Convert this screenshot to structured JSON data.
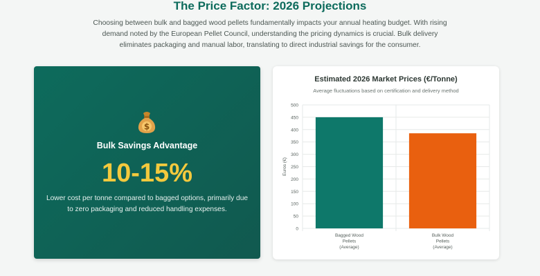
{
  "header": {
    "title": "The Price Factor: 2026 Projections",
    "intro": "Choosing between bulk and bagged wood pellets fundamentally impacts your annual heating budget. With rising demand noted by the European Pellet Council, understanding the pricing dynamics is crucial. Bulk delivery eliminates packaging and manual labor, translating to direct industrial savings for the consumer."
  },
  "advantage": {
    "icon": "money-bag-icon",
    "title": "Bulk Savings Advantage",
    "value": "10-15%",
    "description": "Lower cost per tonne compared to bagged options, primarily due to zero packaging and reduced handling expenses."
  },
  "colors": {
    "brand": "#0d6b5c",
    "accent": "#f3c93d",
    "bagged": "#0e786a",
    "bulk": "#e9600f"
  },
  "chart_data": {
    "type": "bar",
    "title": "Estimated 2026 Market Prices (€/Tonne)",
    "subtitle": "Average fluctuations based on certification and delivery method",
    "ylabel": "Euros (€)",
    "xlabel": "",
    "ylim": [
      0,
      500
    ],
    "yticks": [
      0,
      50,
      100,
      150,
      200,
      250,
      300,
      350,
      400,
      450,
      500
    ],
    "grid": true,
    "categories": [
      [
        "Bagged Wood",
        "Pellets",
        "(Average)"
      ],
      [
        "Bulk Wood",
        "Pellets",
        "(Average)"
      ]
    ],
    "values": [
      450,
      385
    ],
    "bar_colors": [
      "#0e786a",
      "#e9600f"
    ]
  }
}
